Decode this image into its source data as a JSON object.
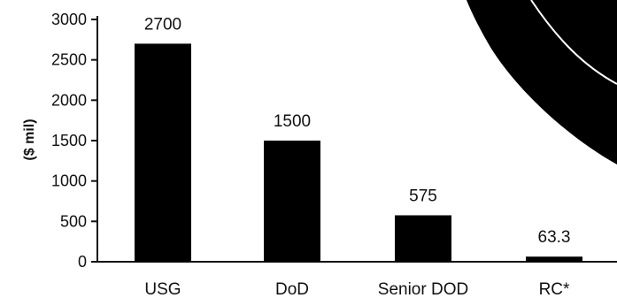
{
  "chart_data": {
    "type": "bar",
    "categories": [
      "USG",
      "DoD",
      "Senior DOD",
      "RC*"
    ],
    "values": [
      2700,
      1500,
      575,
      63.3
    ],
    "data_labels": [
      "2700",
      "1500",
      "575",
      "63.3"
    ],
    "ylabel": "($ mil)",
    "xlabel": "",
    "ylim": [
      0,
      3000
    ],
    "yticks": [
      0,
      500,
      1000,
      1500,
      2000,
      2500,
      3000
    ],
    "grid": false,
    "bar_color": "#000000",
    "decoration_color": "#000000"
  }
}
